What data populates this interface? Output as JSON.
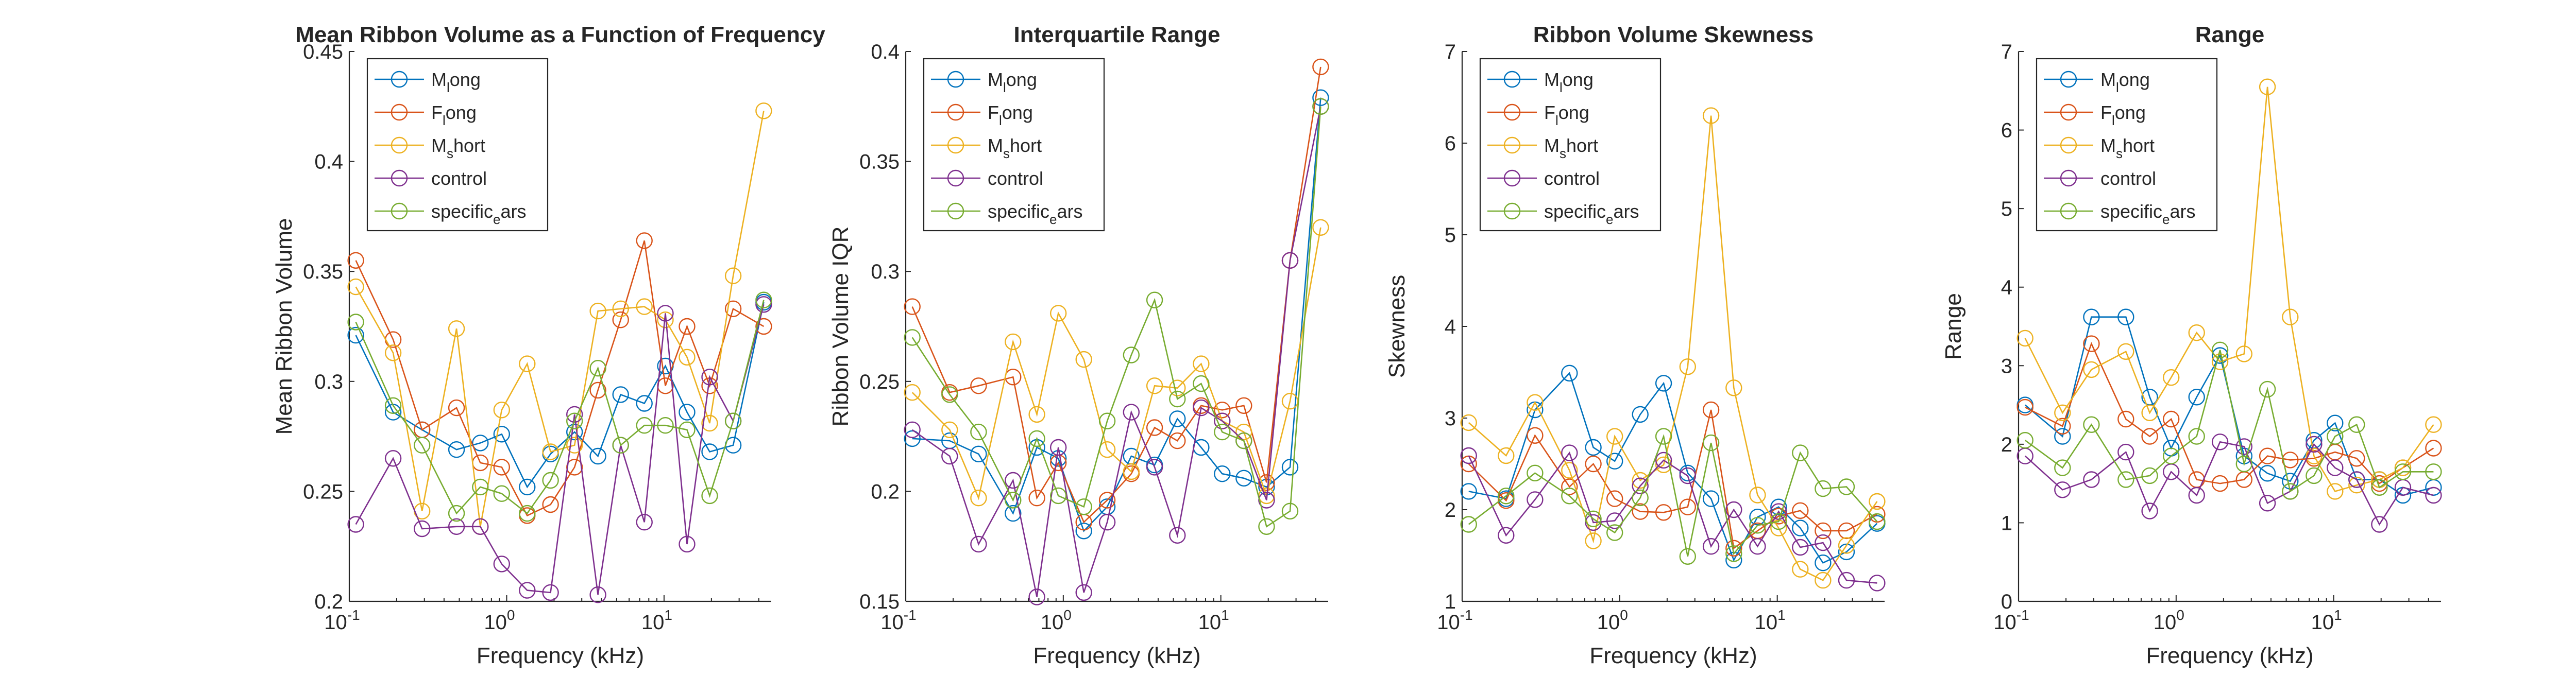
{
  "figure": {
    "series_colors": [
      "#0072BD",
      "#D95319",
      "#EDB120",
      "#7E2F8E",
      "#77AC30"
    ],
    "legend_entries": [
      {
        "base": "M",
        "sub": "l",
        "rest": "ong"
      },
      {
        "base": "F",
        "sub": "l",
        "rest": "ong"
      },
      {
        "base": "M",
        "sub": "s",
        "rest": "hort"
      },
      {
        "base": "control",
        "sub": "",
        "rest": ""
      },
      {
        "base": "specific",
        "sub": "e",
        "rest": "ars"
      }
    ]
  },
  "chart_data": [
    {
      "type": "line",
      "title": "Mean Ribbon Volume as a Function of Frequency",
      "xlabel": "Frequency (kHz)",
      "ylabel": "Mean Ribbon Volume",
      "xscale": "log",
      "xlim": [
        0.1,
        48
      ],
      "ylim": [
        0.2,
        0.45
      ],
      "yticks": [
        0.2,
        0.25,
        0.3,
        0.35,
        0.4,
        0.45
      ],
      "ytick_labels": [
        "0.2",
        "0.25",
        "0.3",
        "0.35",
        "0.4",
        "0.45"
      ],
      "xticks": [
        0.1,
        1,
        10
      ],
      "xtick_labels": [
        {
          "base": "10",
          "exp": "-1"
        },
        {
          "base": "10",
          "exp": "0"
        },
        {
          "base": "10",
          "exp": "1"
        }
      ],
      "legend_location": "top-left",
      "series": [
        {
          "name": "M_long",
          "x": [
            0.11,
            0.19,
            0.29,
            0.48,
            0.68,
            0.93,
            1.35,
            1.9,
            2.7,
            3.8,
            5.3,
            7.5,
            10.2,
            14,
            19.5,
            27.5,
            43
          ],
          "values": [
            0.321,
            0.286,
            0.278,
            0.269,
            0.272,
            0.276,
            0.252,
            0.267,
            0.277,
            0.266,
            0.294,
            0.29,
            0.307,
            0.286,
            0.268,
            0.271,
            0.336
          ]
        },
        {
          "name": "F_long",
          "x": [
            0.11,
            0.19,
            0.29,
            0.48,
            0.68,
            0.93,
            1.35,
            1.9,
            2.7,
            3.8,
            5.3,
            7.5,
            10.2,
            14,
            19.5,
            27.5,
            43
          ],
          "values": [
            0.355,
            0.319,
            0.278,
            0.288,
            0.263,
            0.261,
            0.239,
            0.244,
            0.261,
            0.296,
            0.328,
            0.364,
            0.298,
            0.325,
            0.298,
            0.333,
            0.325
          ]
        },
        {
          "name": "M_short",
          "x": [
            0.11,
            0.19,
            0.29,
            0.48,
            0.68,
            0.93,
            1.35,
            1.9,
            2.7,
            3.8,
            5.3,
            7.5,
            10.2,
            14,
            19.5,
            27.5,
            43
          ],
          "values": [
            0.343,
            0.313,
            0.241,
            0.324,
            0.234,
            0.287,
            0.308,
            0.268,
            0.271,
            0.332,
            0.333,
            0.334,
            0.328,
            0.311,
            0.281,
            0.348,
            0.423
          ]
        },
        {
          "name": "control",
          "x": [
            0.11,
            0.19,
            0.29,
            0.48,
            0.68,
            0.93,
            1.35,
            1.9,
            2.7,
            3.8,
            5.3,
            7.5,
            10.2,
            14,
            19.5,
            27.5,
            43
          ],
          "values": [
            0.235,
            0.265,
            0.233,
            0.234,
            0.234,
            0.217,
            0.205,
            0.204,
            0.285,
            0.203,
            0.271,
            0.236,
            0.331,
            0.226,
            0.302,
            0.282,
            0.335
          ]
        },
        {
          "name": "specific_ears",
          "x": [
            0.11,
            0.19,
            0.29,
            0.48,
            0.68,
            0.93,
            1.35,
            1.9,
            2.7,
            3.8,
            5.3,
            7.5,
            10.2,
            14,
            19.5,
            27.5,
            43
          ],
          "values": [
            0.327,
            0.289,
            0.271,
            0.24,
            0.252,
            0.249,
            0.24,
            0.255,
            0.282,
            0.306,
            0.271,
            0.28,
            0.28,
            0.278,
            0.248,
            0.282,
            0.337
          ]
        }
      ]
    },
    {
      "type": "line",
      "title": "Interquartile Range",
      "xlabel": "Frequency (kHz)",
      "ylabel": "Ribbon Volume IQR",
      "xscale": "log",
      "xlim": [
        0.1,
        48
      ],
      "ylim": [
        0.15,
        0.4
      ],
      "yticks": [
        0.15,
        0.2,
        0.25,
        0.3,
        0.35,
        0.4
      ],
      "ytick_labels": [
        "0.15",
        "0.2",
        "0.25",
        "0.3",
        "0.35",
        "0.4"
      ],
      "xticks": [
        0.1,
        1,
        10
      ],
      "xtick_labels": [
        {
          "base": "10",
          "exp": "-1"
        },
        {
          "base": "10",
          "exp": "0"
        },
        {
          "base": "10",
          "exp": "1"
        }
      ],
      "legend_location": "top-left",
      "series": [
        {
          "name": "M_long",
          "x": [
            0.11,
            0.19,
            0.29,
            0.48,
            0.68,
            0.93,
            1.35,
            1.9,
            2.7,
            3.8,
            5.3,
            7.5,
            10.2,
            14,
            19.5,
            27.5,
            43
          ],
          "values": [
            0.224,
            0.223,
            0.217,
            0.19,
            0.22,
            0.215,
            0.182,
            0.193,
            0.216,
            0.212,
            0.233,
            0.22,
            0.208,
            0.206,
            0.202,
            0.211,
            0.379
          ]
        },
        {
          "name": "F_long",
          "x": [
            0.11,
            0.19,
            0.29,
            0.48,
            0.68,
            0.93,
            1.35,
            1.9,
            2.7,
            3.8,
            5.3,
            7.5,
            10.2,
            14,
            19.5,
            27.5,
            43
          ],
          "values": [
            0.284,
            0.245,
            0.248,
            0.252,
            0.197,
            0.213,
            0.186,
            0.196,
            0.208,
            0.229,
            0.223,
            0.239,
            0.237,
            0.239,
            0.204,
            0.305,
            0.393
          ]
        },
        {
          "name": "M_short",
          "x": [
            0.11,
            0.19,
            0.29,
            0.48,
            0.68,
            0.93,
            1.35,
            1.9,
            2.7,
            3.8,
            5.3,
            7.5,
            10.2,
            14,
            19.5,
            27.5,
            43
          ],
          "values": [
            0.245,
            0.228,
            0.197,
            0.268,
            0.235,
            0.281,
            0.26,
            0.219,
            0.209,
            0.248,
            0.247,
            0.258,
            0.232,
            0.227,
            0.198,
            0.241,
            0.32
          ]
        },
        {
          "name": "control",
          "x": [
            0.11,
            0.19,
            0.29,
            0.48,
            0.68,
            0.93,
            1.35,
            1.9,
            2.7,
            3.8,
            5.3,
            7.5,
            10.2,
            14,
            19.5,
            27.5,
            43
          ],
          "values": [
            0.228,
            0.216,
            0.176,
            0.205,
            0.152,
            0.22,
            0.154,
            0.186,
            0.236,
            0.211,
            0.18,
            0.238,
            0.232,
            0.223,
            0.196,
            0.305,
            0.375
          ]
        },
        {
          "name": "specific_ears",
          "x": [
            0.11,
            0.19,
            0.29,
            0.48,
            0.68,
            0.93,
            1.35,
            1.9,
            2.7,
            3.8,
            5.3,
            7.5,
            10.2,
            14,
            19.5,
            27.5,
            43
          ],
          "values": [
            0.27,
            0.244,
            0.227,
            0.196,
            0.224,
            0.198,
            0.193,
            0.232,
            0.262,
            0.287,
            0.242,
            0.249,
            0.227,
            0.223,
            0.184,
            0.191,
            0.375
          ]
        }
      ]
    },
    {
      "type": "line",
      "title": "Ribbon Volume Skewness",
      "xlabel": "Frequency (kHz)",
      "ylabel": "Skewness",
      "xscale": "log",
      "xlim": [
        0.1,
        48
      ],
      "ylim": [
        1,
        7
      ],
      "yticks": [
        1,
        2,
        3,
        4,
        5,
        6,
        7
      ],
      "ytick_labels": [
        "1",
        "2",
        "3",
        "4",
        "5",
        "6",
        "7"
      ],
      "xticks": [
        0.1,
        1,
        10
      ],
      "xtick_labels": [
        {
          "base": "10",
          "exp": "-1"
        },
        {
          "base": "10",
          "exp": "0"
        },
        {
          "base": "10",
          "exp": "1"
        }
      ],
      "legend_location": "top-left",
      "series": [
        {
          "name": "M_long",
          "x": [
            0.11,
            0.19,
            0.29,
            0.48,
            0.68,
            0.93,
            1.35,
            1.9,
            2.7,
            3.8,
            5.3,
            7.5,
            10.2,
            14,
            19.5,
            27.5,
            43
          ],
          "values": [
            2.2,
            2.12,
            3.09,
            3.49,
            2.68,
            2.53,
            3.04,
            3.38,
            2.4,
            2.12,
            1.45,
            1.92,
            2.03,
            1.8,
            1.42,
            1.54,
            1.85
          ]
        },
        {
          "name": "F_long",
          "x": [
            0.11,
            0.19,
            0.29,
            0.48,
            0.68,
            0.93,
            1.35,
            1.9,
            2.7,
            3.8,
            5.3,
            7.5,
            10.2,
            14,
            19.5,
            27.5,
            43
          ],
          "values": [
            2.5,
            2.1,
            2.81,
            2.25,
            2.5,
            2.12,
            1.98,
            1.97,
            2.03,
            3.09,
            1.58,
            1.77,
            1.93,
            1.99,
            1.77,
            1.77,
            1.95
          ]
        },
        {
          "name": "M_short",
          "x": [
            0.11,
            0.19,
            0.29,
            0.48,
            0.68,
            0.93,
            1.35,
            1.9,
            2.7,
            3.8,
            5.3,
            7.5,
            10.2,
            14,
            19.5,
            27.5,
            43
          ],
          "values": [
            2.95,
            2.59,
            3.17,
            2.43,
            1.66,
            2.8,
            2.32,
            2.49,
            3.56,
            6.3,
            3.33,
            2.16,
            1.8,
            1.35,
            1.23,
            1.61,
            2.09
          ]
        },
        {
          "name": "control",
          "x": [
            0.11,
            0.19,
            0.29,
            0.48,
            0.68,
            0.93,
            1.35,
            1.9,
            2.7,
            3.8,
            5.3,
            7.5,
            10.2,
            14,
            19.5,
            27.5,
            43
          ],
          "values": [
            2.59,
            1.72,
            2.11,
            2.62,
            1.86,
            1.88,
            2.26,
            2.54,
            2.37,
            1.6,
            2.0,
            1.6,
            1.98,
            1.59,
            1.64,
            1.23,
            1.2
          ]
        },
        {
          "name": "specific_ears",
          "x": [
            0.11,
            0.19,
            0.29,
            0.48,
            0.68,
            0.93,
            1.35,
            1.9,
            2.7,
            3.8,
            5.3,
            7.5,
            10.2,
            14,
            19.5,
            27.5,
            43
          ],
          "values": [
            1.84,
            2.15,
            2.4,
            2.15,
            1.9,
            1.75,
            2.13,
            2.8,
            1.49,
            2.73,
            1.52,
            1.83,
            1.87,
            2.62,
            2.23,
            2.25,
            1.87
          ]
        }
      ]
    },
    {
      "type": "line",
      "title": "Range",
      "xlabel": "Frequency (kHz)",
      "ylabel": "Range",
      "xscale": "log",
      "xlim": [
        0.1,
        48
      ],
      "ylim": [
        0,
        7
      ],
      "yticks": [
        0,
        1,
        2,
        3,
        4,
        5,
        6,
        7
      ],
      "ytick_labels": [
        "0",
        "1",
        "2",
        "3",
        "4",
        "5",
        "6",
        "7"
      ],
      "xticks": [
        0.1,
        1,
        10
      ],
      "xtick_labels": [
        {
          "base": "10",
          "exp": "-1"
        },
        {
          "base": "10",
          "exp": "0"
        },
        {
          "base": "10",
          "exp": "1"
        }
      ],
      "legend_location": "top-left",
      "series": [
        {
          "name": "M_long",
          "x": [
            0.11,
            0.19,
            0.29,
            0.48,
            0.68,
            0.93,
            1.35,
            1.9,
            2.7,
            3.8,
            5.3,
            7.5,
            10.2,
            14,
            19.5,
            27.5,
            43
          ],
          "values": [
            2.5,
            2.1,
            3.62,
            3.62,
            2.6,
            1.95,
            2.6,
            3.13,
            1.85,
            1.63,
            1.53,
            2.05,
            2.27,
            1.55,
            1.55,
            1.35,
            1.45
          ]
        },
        {
          "name": "F_long",
          "x": [
            0.11,
            0.19,
            0.29,
            0.48,
            0.68,
            0.93,
            1.35,
            1.9,
            2.7,
            3.8,
            5.3,
            7.5,
            10.2,
            14,
            19.5,
            27.5,
            43
          ],
          "values": [
            2.47,
            2.23,
            3.28,
            2.32,
            2.1,
            2.32,
            1.55,
            1.5,
            1.55,
            1.85,
            1.8,
            1.82,
            1.9,
            1.82,
            1.5,
            1.7,
            1.95
          ]
        },
        {
          "name": "M_short",
          "x": [
            0.11,
            0.19,
            0.29,
            0.48,
            0.68,
            0.93,
            1.35,
            1.9,
            2.7,
            3.8,
            5.3,
            7.5,
            10.2,
            14,
            19.5,
            27.5,
            43
          ],
          "values": [
            3.35,
            2.4,
            2.95,
            3.18,
            2.4,
            2.85,
            3.42,
            3.05,
            3.15,
            6.55,
            3.62,
            1.85,
            1.4,
            1.48,
            1.55,
            1.7,
            2.25
          ]
        },
        {
          "name": "control",
          "x": [
            0.11,
            0.19,
            0.29,
            0.48,
            0.68,
            0.93,
            1.35,
            1.9,
            2.7,
            3.8,
            5.3,
            7.5,
            10.2,
            14,
            19.5,
            27.5,
            43
          ],
          "values": [
            1.85,
            1.42,
            1.55,
            1.9,
            1.15,
            1.65,
            1.35,
            2.03,
            1.97,
            1.25,
            1.4,
            2.0,
            1.7,
            1.55,
            0.98,
            1.45,
            1.35
          ]
        },
        {
          "name": "specific_ears",
          "x": [
            0.11,
            0.19,
            0.29,
            0.48,
            0.68,
            0.93,
            1.35,
            1.9,
            2.7,
            3.8,
            5.3,
            7.5,
            10.2,
            14,
            19.5,
            27.5,
            43
          ],
          "values": [
            2.05,
            1.7,
            2.25,
            1.55,
            1.6,
            1.85,
            2.1,
            3.2,
            1.75,
            2.7,
            1.4,
            1.6,
            2.1,
            2.25,
            1.45,
            1.65,
            1.65
          ]
        }
      ]
    }
  ]
}
